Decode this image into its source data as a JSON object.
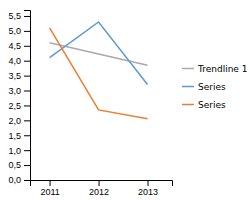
{
  "chart_data": {
    "type": "line",
    "series": [
      {
        "name": "Trendline 1",
        "color": "#AAAAAA",
        "x": [
          2011,
          2013
        ],
        "values": [
          4.6,
          3.85
        ]
      },
      {
        "name": "Series",
        "color": "#5B9BD5",
        "x": [
          2011,
          2012,
          2013
        ],
        "values": [
          4.1,
          5.3,
          3.2
        ]
      },
      {
        "name": "Series",
        "color": "#ED7D31",
        "x": [
          2011,
          2012,
          2013
        ],
        "values": [
          5.1,
          2.35,
          2.05
        ]
      }
    ],
    "xlim": [
      2010.6,
      2013.5
    ],
    "ylim": [
      0.0,
      5.7
    ],
    "xticks": [
      2011,
      2012,
      2013
    ],
    "yticks": [
      {
        "value": 0.0,
        "label": "0,0"
      },
      {
        "value": 0.5,
        "label": "0,5"
      },
      {
        "value": 1.0,
        "label": "1,0"
      },
      {
        "value": 1.5,
        "label": "1,5"
      },
      {
        "value": 2.0,
        "label": "2,0"
      },
      {
        "value": 2.5,
        "label": "2,5"
      },
      {
        "value": 3.0,
        "label": "3,0"
      },
      {
        "value": 3.5,
        "label": "3,5"
      },
      {
        "value": 4.0,
        "label": "4,0"
      },
      {
        "value": 4.5,
        "label": "4,5"
      },
      {
        "value": 5.0,
        "label": "5,0"
      },
      {
        "value": 5.5,
        "label": "5,5"
      }
    ],
    "grid": false,
    "legend": "right"
  }
}
